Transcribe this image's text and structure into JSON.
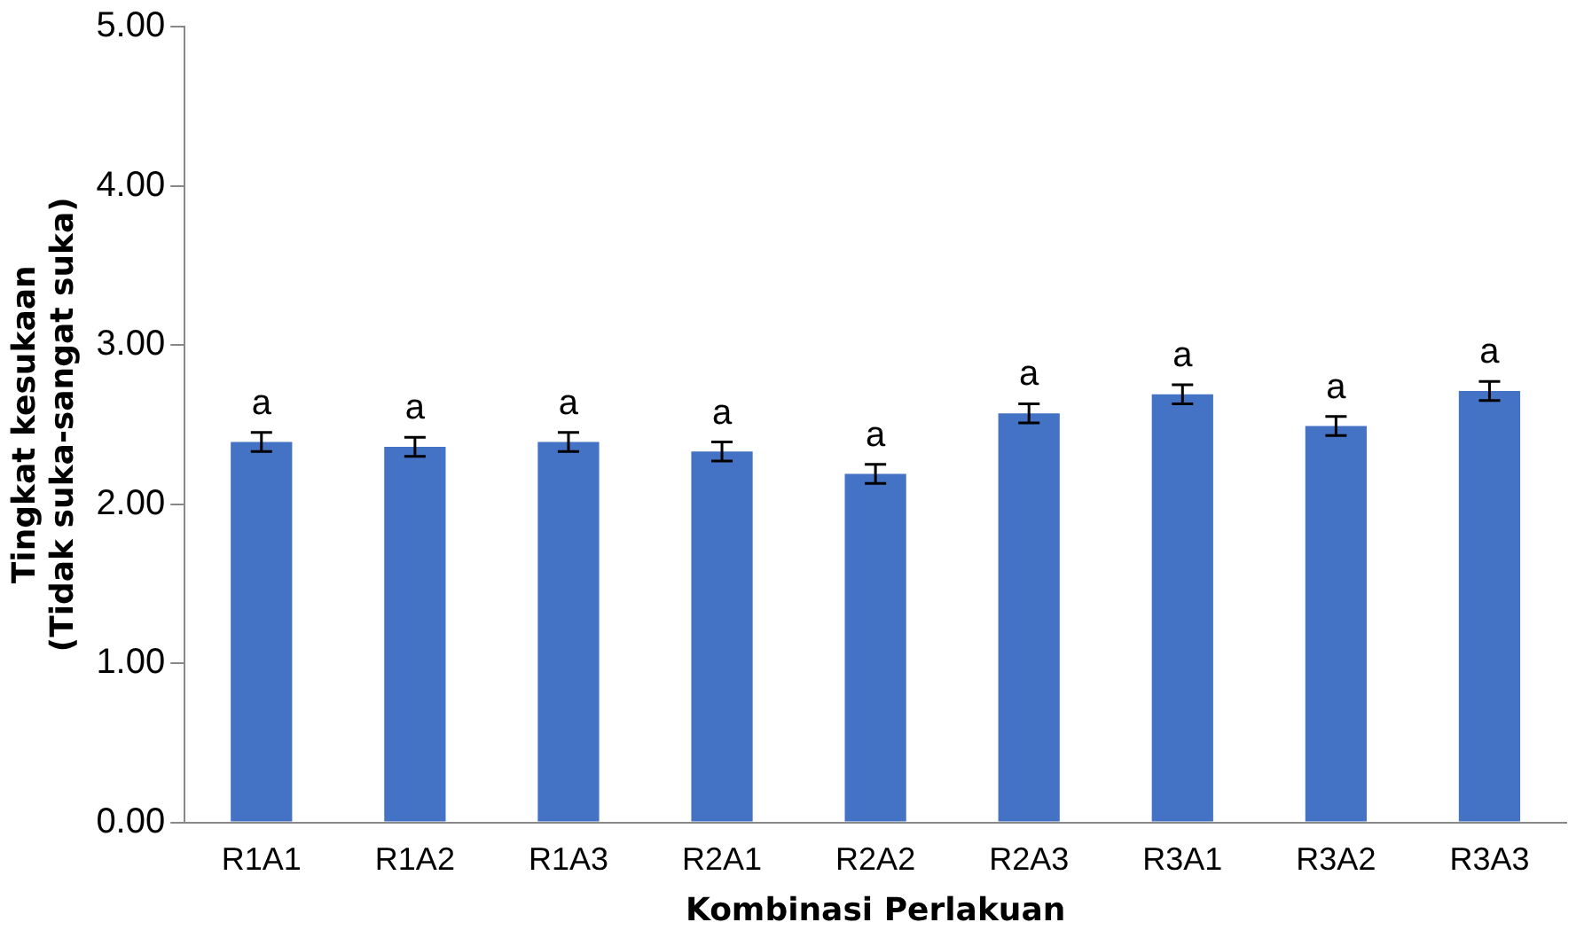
{
  "chart_data": {
    "type": "bar",
    "xlabel": "Kombinasi Perlakuan",
    "ylabel": "Tingkat kesukaan\n(Tidak suka-sangat suka)",
    "categories": [
      "R1A1",
      "R1A2",
      "R1A3",
      "R2A1",
      "R2A2",
      "R2A3",
      "R3A1",
      "R3A2",
      "R3A3"
    ],
    "values": [
      2.39,
      2.36,
      2.39,
      2.33,
      2.19,
      2.57,
      2.69,
      2.49,
      2.71
    ],
    "errors": [
      0.06,
      0.06,
      0.06,
      0.06,
      0.06,
      0.06,
      0.06,
      0.06,
      0.06
    ],
    "value_labels": [
      "a",
      "a",
      "a",
      "a",
      "a",
      "a",
      "a",
      "a",
      "a"
    ],
    "color": "#4472c4",
    "ylim": [
      0,
      5
    ],
    "yticks": [
      {
        "value": 0,
        "label": "0.00"
      },
      {
        "value": 1,
        "label": "1.00"
      },
      {
        "value": 2,
        "label": "2.00"
      },
      {
        "value": 3,
        "label": "3.00"
      },
      {
        "value": 4,
        "label": "4.00"
      },
      {
        "value": 5,
        "label": "5.00"
      }
    ],
    "grid": false,
    "legend": false
  }
}
